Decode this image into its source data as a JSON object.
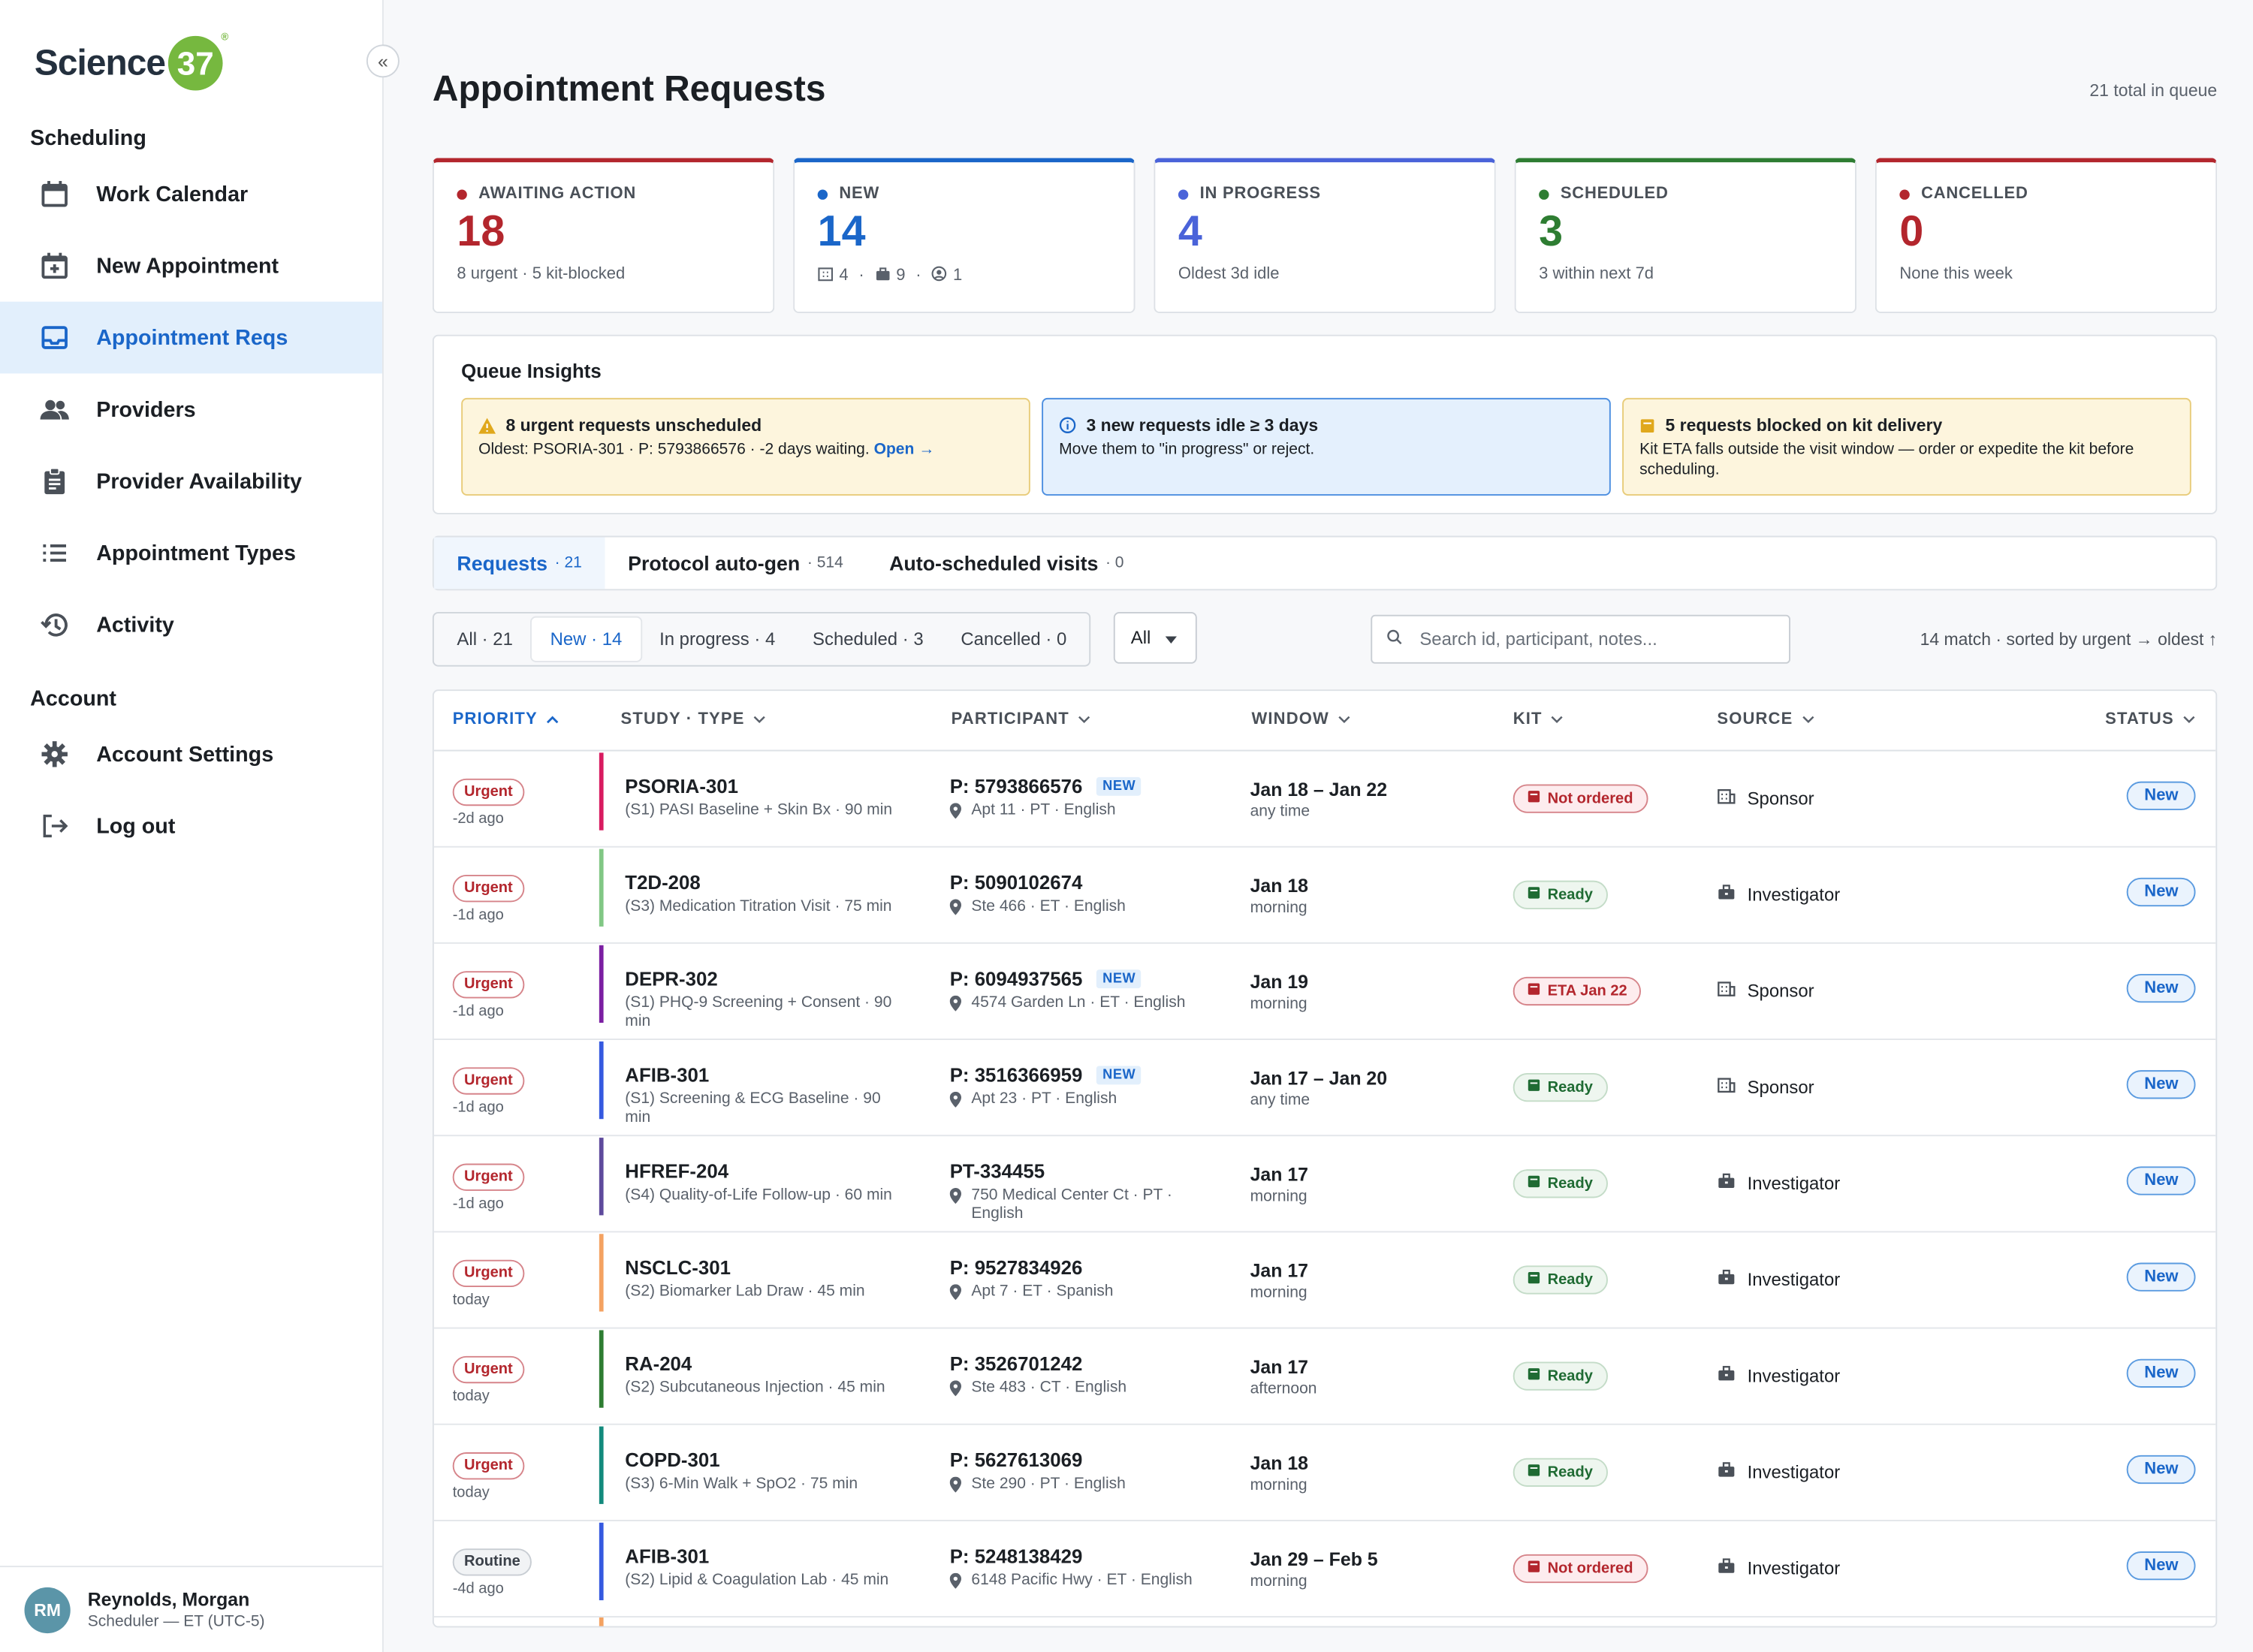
{
  "brand": {
    "name": "Science",
    "badge": "37",
    "reg": "®"
  },
  "sidebar": {
    "collapse": "«",
    "section_scheduling": "Scheduling",
    "section_account": "Account",
    "items": [
      {
        "label": "Work Calendar",
        "icon": "calendar-icon"
      },
      {
        "label": "New Appointment",
        "icon": "calendar-plus-icon"
      },
      {
        "label": "Appointment Reqs",
        "icon": "inbox-icon",
        "active": true
      },
      {
        "label": "Providers",
        "icon": "people-icon"
      },
      {
        "label": "Provider Availability",
        "icon": "clipboard-icon"
      },
      {
        "label": "Appointment Types",
        "icon": "list-icon"
      },
      {
        "label": "Activity",
        "icon": "history-icon"
      }
    ],
    "account_items": [
      {
        "label": "Account Settings",
        "icon": "gear-icon"
      },
      {
        "label": "Log out",
        "icon": "logout-icon"
      }
    ],
    "user": {
      "initials": "RM",
      "name": "Reynolds, Morgan",
      "role": "Scheduler — ET (UTC-5)"
    }
  },
  "header": {
    "title": "Appointment Requests",
    "total": "21 total in queue"
  },
  "kpis": [
    {
      "label": "AWAITING ACTION",
      "value": "18",
      "sub": "8 urgent · 5 kit-blocked",
      "color": "#b3262d"
    },
    {
      "label": "NEW",
      "value": "14",
      "sub_a": "4",
      "sub_b": "9",
      "sub_c": "1",
      "color": "#1a66c9"
    },
    {
      "label": "IN PROGRESS",
      "value": "4",
      "sub": "Oldest 3d idle",
      "color": "#4a63d9"
    },
    {
      "label": "SCHEDULED",
      "value": "3",
      "sub": "3 within next 7d",
      "color": "#2e7d32"
    },
    {
      "label": "CANCELLED",
      "value": "0",
      "sub": "None this week",
      "color": "#b3262d"
    }
  ],
  "insights": {
    "title": "Queue Insights",
    "cards": [
      {
        "head": "8 urgent requests unscheduled",
        "body": "Oldest: PSORIA-301 · P: 5793866576 · -2 days waiting.",
        "link": "Open →"
      },
      {
        "head": "3 new requests idle ≥ 3 days",
        "body": "Move them to \"in progress\" or reject."
      },
      {
        "head": "5 requests blocked on kit delivery",
        "body": "Kit ETA falls outside the visit window — order or expedite the kit before scheduling."
      }
    ]
  },
  "tabs": [
    {
      "label": "Requests",
      "count": "· 21"
    },
    {
      "label": "Protocol auto-gen",
      "count": "· 514"
    },
    {
      "label": "Auto-scheduled visits",
      "count": "· 0"
    }
  ],
  "filters": [
    "All · 21",
    "New · 14",
    "In progress · 4",
    "Scheduled · 3",
    "Cancelled · 0"
  ],
  "select_all": "All",
  "search": {
    "placeholder": "Search id, participant, notes..."
  },
  "match": "14 match · sorted by urgent → oldest ↑",
  "columns": [
    "PRIORITY",
    "STUDY · TYPE",
    "PARTICIPANT",
    "WINDOW",
    "KIT",
    "SOURCE",
    "STATUS"
  ],
  "rows": [
    {
      "priority": "Urgent",
      "ago": "-2d ago",
      "bar": "#d81b60",
      "study": "PSORIA-301",
      "type": "(S1) PASI Baseline + Skin Bx · 90 min",
      "pid": "P: 5793866576",
      "new": "NEW",
      "addr": "Apt 11 · PT · English",
      "date": "Jan 18 – Jan 22",
      "time": "any time",
      "kit": "Not ordered",
      "kit_state": "bad",
      "source": "Sponsor",
      "source_icon": "building-icon",
      "status": "New"
    },
    {
      "priority": "Urgent",
      "ago": "-1d ago",
      "bar": "#81c784",
      "study": "T2D-208",
      "type": "(S3) Medication Titration Visit · 75 min",
      "pid": "P: 5090102674",
      "new": "",
      "addr": "Ste 466 · ET · English",
      "date": "Jan 18",
      "time": "morning",
      "kit": "Ready",
      "kit_state": "ok",
      "source": "Investigator",
      "source_icon": "briefcase-icon",
      "status": "New"
    },
    {
      "priority": "Urgent",
      "ago": "-1d ago",
      "bar": "#7b1fa2",
      "study": "DEPR-302",
      "type": "(S1) PHQ-9 Screening + Consent · 90 min",
      "pid": "P: 6094937565",
      "new": "NEW",
      "addr": "4574 Garden Ln · ET · English",
      "date": "Jan 19",
      "time": "morning",
      "kit": "ETA Jan 22",
      "kit_state": "bad",
      "source": "Sponsor",
      "source_icon": "building-icon",
      "status": "New"
    },
    {
      "priority": "Urgent",
      "ago": "-1d ago",
      "bar": "#3559e0",
      "study": "AFIB-301",
      "type": "(S1) Screening & ECG Baseline · 90 min",
      "pid": "P: 3516366959",
      "new": "NEW",
      "addr": "Apt 23 · PT · English",
      "date": "Jan 17 – Jan 20",
      "time": "any time",
      "kit": "Ready",
      "kit_state": "ok",
      "source": "Sponsor",
      "source_icon": "building-icon",
      "status": "New"
    },
    {
      "priority": "Urgent",
      "ago": "-1d ago",
      "bar": "#5e4a9c",
      "study": "HFREF-204",
      "type": "(S4) Quality-of-Life Follow-up · 60 min",
      "pid": "PT-334455",
      "new": "",
      "addr": "750 Medical Center Ct · PT · English",
      "date": "Jan 17",
      "time": "morning",
      "kit": "Ready",
      "kit_state": "ok",
      "source": "Investigator",
      "source_icon": "briefcase-icon",
      "status": "New"
    },
    {
      "priority": "Urgent",
      "ago": "today",
      "bar": "#f4a261",
      "study": "NSCLC-301",
      "type": "(S2) Biomarker Lab Draw · 45 min",
      "pid": "P: 9527834926",
      "new": "",
      "addr": "Apt 7 · ET · Spanish",
      "date": "Jan 17",
      "time": "morning",
      "kit": "Ready",
      "kit_state": "ok",
      "source": "Investigator",
      "source_icon": "briefcase-icon",
      "status": "New"
    },
    {
      "priority": "Urgent",
      "ago": "today",
      "bar": "#2e7d32",
      "study": "RA-204",
      "type": "(S2) Subcutaneous Injection · 45 min",
      "pid": "P: 3526701242",
      "new": "",
      "addr": "Ste 483 · CT · English",
      "date": "Jan 17",
      "time": "afternoon",
      "kit": "Ready",
      "kit_state": "ok",
      "source": "Investigator",
      "source_icon": "briefcase-icon",
      "status": "New"
    },
    {
      "priority": "Urgent",
      "ago": "today",
      "bar": "#138a7d",
      "study": "COPD-301",
      "type": "(S3) 6-Min Walk + SpO2 · 75 min",
      "pid": "P: 5627613069",
      "new": "",
      "addr": "Ste 290 · PT · English",
      "date": "Jan 18",
      "time": "morning",
      "kit": "Ready",
      "kit_state": "ok",
      "source": "Investigator",
      "source_icon": "briefcase-icon",
      "status": "New"
    },
    {
      "priority": "Routine",
      "ago": "-4d ago",
      "bar": "#3559e0",
      "study": "AFIB-301",
      "type": "(S2) Lipid & Coagulation Lab · 45 min",
      "pid": "P: 5248138429",
      "new": "",
      "addr": "6148 Pacific Hwy · ET · English",
      "date": "Jan 29 – Feb 5",
      "time": "morning",
      "kit": "Not ordered",
      "kit_state": "bad",
      "source": "Investigator",
      "source_icon": "briefcase-icon",
      "status": "New"
    }
  ]
}
